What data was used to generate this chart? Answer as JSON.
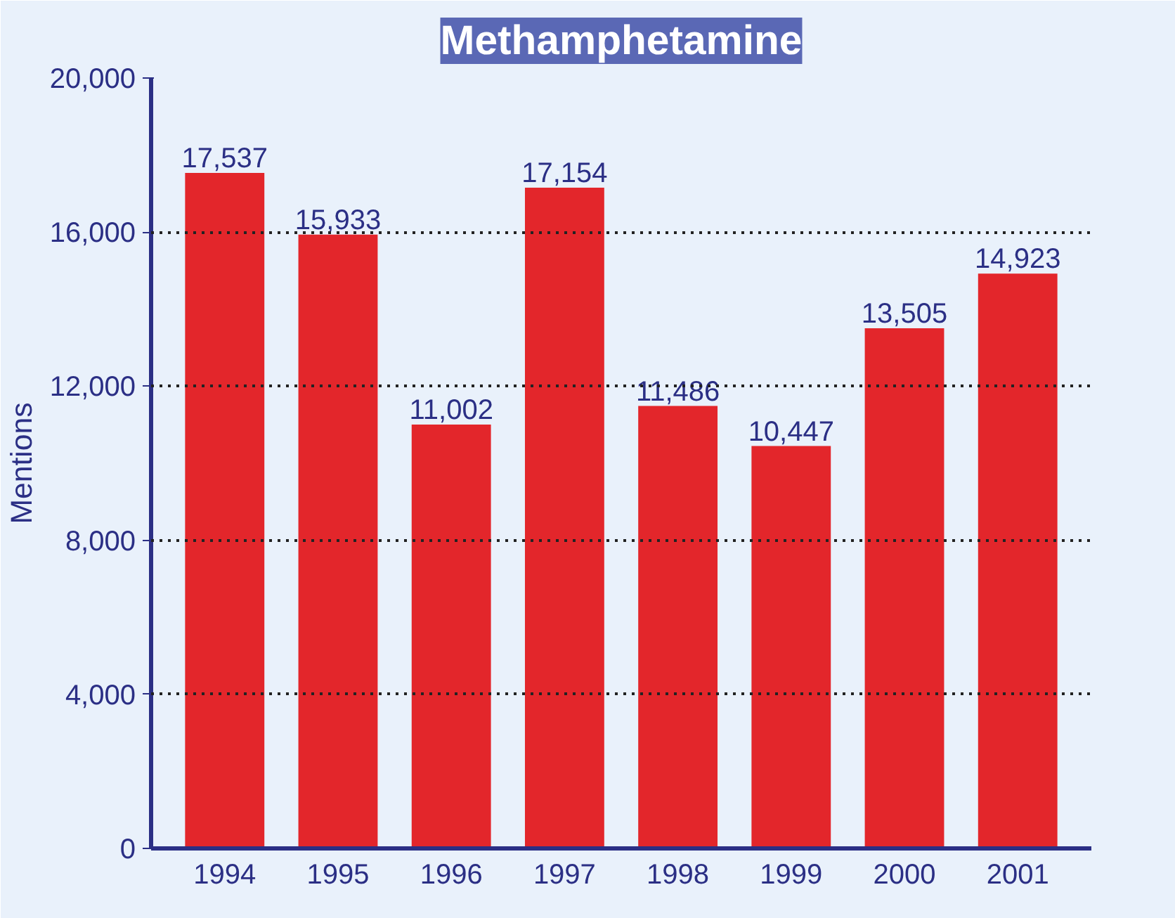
{
  "chart_data": {
    "type": "bar",
    "title": "Methamphetamine",
    "ylabel": "Mentions",
    "categories": [
      "1994",
      "1995",
      "1996",
      "1997",
      "1998",
      "1999",
      "2000",
      "2001"
    ],
    "values": [
      17537,
      15933,
      11002,
      17154,
      11486,
      10447,
      13505,
      14923
    ],
    "value_labels": [
      "17,537",
      "15,933",
      "11,002",
      "17,154",
      "11,486",
      "10,447",
      "13,505",
      "14,923"
    ],
    "color": "#e3262b",
    "ylim": [
      0,
      20000
    ],
    "yticks": [
      {
        "value": 0,
        "label": "0"
      },
      {
        "value": 4000,
        "label": "4,000"
      },
      {
        "value": 8000,
        "label": "8,000"
      },
      {
        "value": 12000,
        "label": "12,000"
      },
      {
        "value": 16000,
        "label": "16,000"
      },
      {
        "value": 20000,
        "label": "20,000"
      }
    ],
    "grid": "y"
  }
}
